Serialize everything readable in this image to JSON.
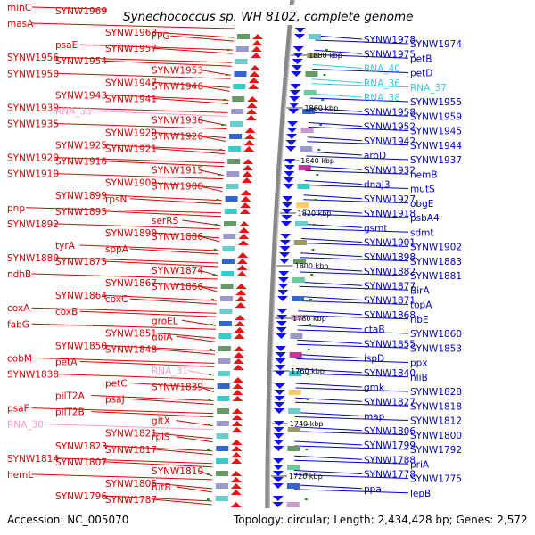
{
  "title": "Synechococcus sp. WH 8102, complete genome",
  "footer": {
    "accession": "Accession: NC_005070",
    "topology": "Topology: circular; Length: 2,434,428 bp; Genes: 2,572"
  },
  "colors": {
    "left": "#dd0000",
    "right": "#0000cc",
    "left_rna": "#ff99cc",
    "right_rna": "#33ccdd",
    "backbone": "#888888",
    "tick": "#228822"
  },
  "scale_marks": [
    "1880 kbp",
    "1860 kbp",
    "1840 kbp",
    "1820 kbp",
    "1800 kbp",
    "1780 kbp",
    "1760 kbp",
    "1740 kbp",
    "1720 kbp"
  ],
  "left_labels": [
    "minC",
    "SYNW1969",
    "SYNW1965",
    "masA",
    "SYNW1963",
    "FPG",
    "psaE",
    "SYNW1957",
    "SYNW1956",
    "SYNW1954",
    "SYNW1953",
    "SYNW1950",
    "SYNW1947",
    "SYNW1946",
    "SYNW1943",
    "SYNW1941",
    "SYNW1939",
    "RNA_33",
    "SYNW1936",
    "SYNW1935",
    "SYNW1929",
    "SYNW1926",
    "SYNW1925",
    "SYNW1921",
    "SYNW1920",
    "SYNW1916",
    "SYNW1915",
    "SYNW1910",
    "SYNW1909",
    "SYNW1900",
    "SYNW1899",
    "rpsN",
    "pnp",
    "SYNW1895",
    "serRS",
    "SYNW1892",
    "SYNW1890",
    "SYNW1886",
    "tyrA",
    "sppA",
    "SYNW1880",
    "SYNW1875",
    "SYNW1874",
    "ndhB",
    "SYNW1867",
    "SYNW1866",
    "SYNW1864",
    "coxC",
    "coxA",
    "coxB",
    "groEL",
    "fabG",
    "SYNW1851",
    "ubiA",
    "SYNW1850",
    "SYNW1848",
    "cobM",
    "petA",
    "RNA_31",
    "SYNW1838",
    "petC",
    "SYNW1839",
    "pilT2A",
    "psaJ",
    "psaF",
    "pilT2B",
    "gltX",
    "RNA_30",
    "SYNW1821",
    "rplS",
    "SYNW1823",
    "SYNW1817",
    "SYNW1814",
    "SYNW1807",
    "SYNW1810",
    "hemL",
    "SYNW1805",
    "futB",
    "SYNW1796",
    "SYNW1787"
  ],
  "right_labels": [
    "SYNW1978",
    "SYNW1974",
    "SYNW1975",
    "petB",
    "RNA_40",
    "petD",
    "RNA_36",
    "RNA_37",
    "RNA_38",
    "SYNW1955",
    "SYNW1958",
    "SYNW1959",
    "SYNW1952",
    "SYNW1945",
    "SYNW1942",
    "SYNW1944",
    "aroD",
    "SYNW1937",
    "SYNW1932",
    "hemB",
    "dnaJ3",
    "mutS",
    "SYNW1927",
    "obgE",
    "SYNW1918",
    "psbA4",
    "gsmt",
    "sdmt",
    "SYNW1901",
    "SYNW1902",
    "SYNW1898",
    "SYNW1883",
    "SYNW1882",
    "SYNW1881",
    "SYNW1877",
    "BirA",
    "SYNW1871",
    "topA",
    "SYNW1868",
    "ribE",
    "ctaB",
    "SYNW1860",
    "SYNW1855",
    "SYNW1853",
    "ispD",
    "ppx",
    "SYNW1840",
    "hliB",
    "gmk",
    "SYNW1828",
    "SYNW1827",
    "SYNW1818",
    "map",
    "SYNW1812",
    "SYNW1806",
    "SYNW1800",
    "SYNW1799",
    "SYNW1792",
    "SYNW1788",
    "priA",
    "SYNW1778",
    "SYNW1775",
    "ppa",
    "lepB"
  ]
}
